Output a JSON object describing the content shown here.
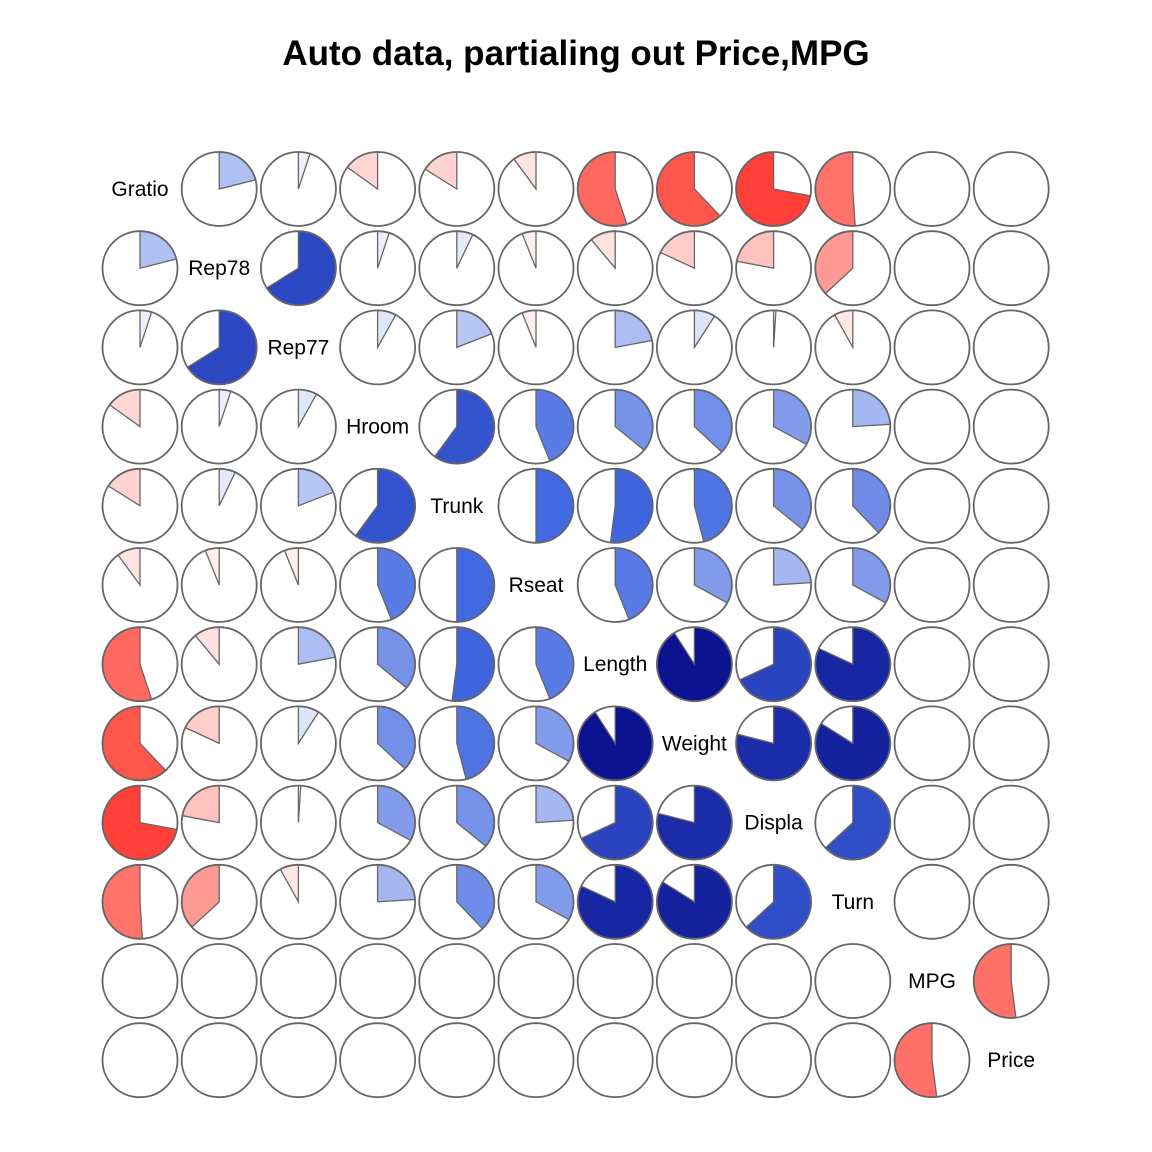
{
  "title": "Auto data, partialing out Price,MPG",
  "chart_data": {
    "type": "heatmap",
    "subtype": "corrgram-pie",
    "title": "Auto data, partialing out Price,MPG",
    "variables": [
      "Gratio",
      "Rep78",
      "Rep77",
      "Hroom",
      "Trunk",
      "Rseat",
      "Length",
      "Weight",
      "Displa",
      "Turn",
      "MPG",
      "Price"
    ],
    "color_scale": {
      "negative": "#ff0000",
      "zero": "#ffffff",
      "positive": "#00007f"
    },
    "matrix": [
      [
        1,
        0.21,
        0.05,
        -0.15,
        -0.16,
        -0.1,
        -0.55,
        -0.62,
        -0.72,
        -0.51,
        0,
        0
      ],
      [
        0.21,
        1,
        0.66,
        0.05,
        0.07,
        -0.06,
        -0.11,
        -0.18,
        -0.22,
        -0.37,
        0,
        0
      ],
      [
        0.05,
        0.66,
        1,
        0.08,
        0.19,
        -0.06,
        0.22,
        0.09,
        0.01,
        -0.08,
        0,
        0
      ],
      [
        -0.15,
        0.05,
        0.08,
        1,
        0.6,
        0.44,
        0.36,
        0.37,
        0.33,
        0.24,
        0,
        0
      ],
      [
        -0.16,
        0.07,
        0.19,
        0.6,
        1,
        0.5,
        0.52,
        0.46,
        0.36,
        0.38,
        0,
        0
      ],
      [
        -0.1,
        -0.06,
        -0.06,
        0.44,
        0.5,
        1,
        0.44,
        0.33,
        0.24,
        0.33,
        0,
        0
      ],
      [
        -0.55,
        -0.11,
        0.22,
        0.36,
        0.52,
        0.44,
        1,
        0.91,
        0.68,
        0.82,
        0,
        0
      ],
      [
        -0.62,
        -0.18,
        0.09,
        0.37,
        0.46,
        0.33,
        0.91,
        1,
        0.79,
        0.84,
        0,
        0
      ],
      [
        -0.72,
        -0.22,
        0.01,
        0.33,
        0.36,
        0.24,
        0.68,
        0.79,
        1,
        0.63,
        0,
        0
      ],
      [
        -0.51,
        -0.37,
        -0.08,
        0.24,
        0.38,
        0.33,
        0.82,
        0.84,
        0.63,
        1,
        0,
        0
      ],
      [
        0,
        0,
        0,
        0,
        0,
        0,
        0,
        0,
        0,
        0,
        1,
        -0.52
      ],
      [
        0,
        0,
        0,
        0,
        0,
        0,
        0,
        0,
        0,
        0,
        -0.52,
        1
      ]
    ]
  }
}
